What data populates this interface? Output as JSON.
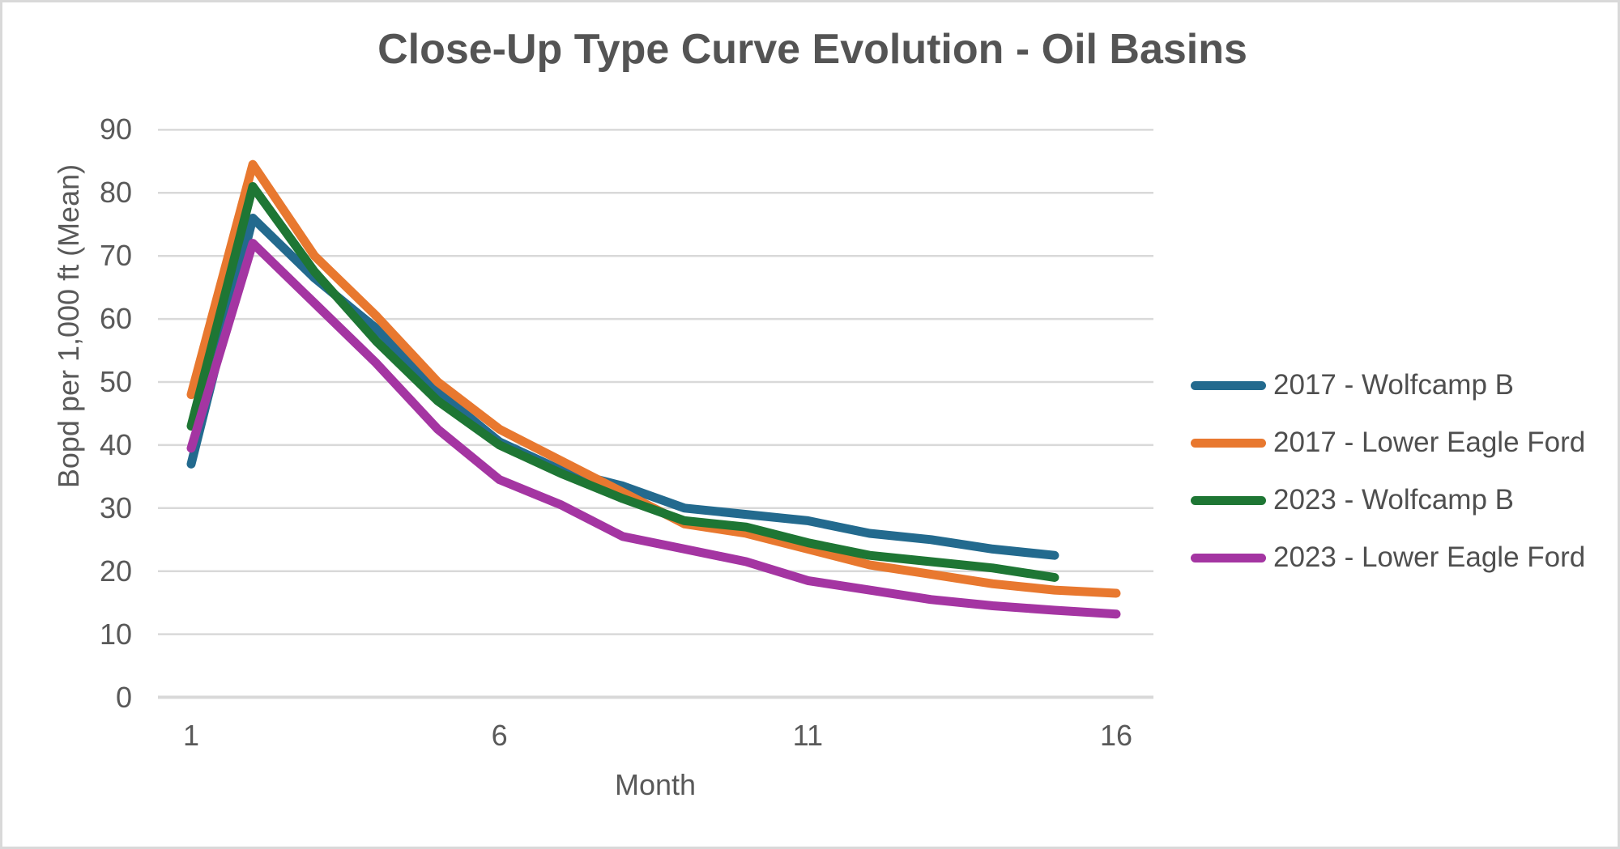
{
  "window": {
    "background": "#ffffff",
    "border_color": "#d9d9d9",
    "text_color": "#595959",
    "gridline_color": "#d9d9d9"
  },
  "chart_data": {
    "type": "line",
    "title": "Close-Up Type Curve Evolution - Oil Basins",
    "xlabel": "Month",
    "ylabel": "Bopd per 1,000 ft (Mean)",
    "xlim": [
      1,
      16
    ],
    "ylim": [
      0,
      90
    ],
    "x_ticks": [
      1,
      6,
      11,
      16
    ],
    "y_ticks": [
      0,
      10,
      20,
      30,
      40,
      50,
      60,
      70,
      80,
      90
    ],
    "grid": "horizontal",
    "legend_position": "right",
    "x": [
      1,
      2,
      3,
      4,
      5,
      6,
      7,
      8,
      9,
      10,
      11,
      12,
      13,
      14,
      15,
      16
    ],
    "series": [
      {
        "name": "2017 - Wolfcamp B",
        "color": "#236A8E",
        "values": [
          37,
          76,
          66.5,
          58.5,
          48.5,
          40.5,
          36,
          33.5,
          30,
          29,
          28,
          26,
          25,
          23.5,
          22.5
        ]
      },
      {
        "name": "2017 - Lower Eagle Ford",
        "color": "#E8782F",
        "values": [
          48,
          84.5,
          70,
          60.5,
          50,
          42.5,
          37.5,
          32.5,
          27.5,
          26,
          23.5,
          21,
          19.5,
          18,
          17,
          16.5
        ]
      },
      {
        "name": "2023 - Wolfcamp B",
        "color": "#1E7634",
        "values": [
          43,
          81,
          67.5,
          56.5,
          47,
          40,
          35.5,
          31.5,
          28,
          27,
          24.5,
          22.5,
          21.5,
          20.5,
          19
        ]
      },
      {
        "name": "2023 - Lower Eagle Ford",
        "color": "#A435A2",
        "values": [
          39.5,
          72,
          62.5,
          53,
          42.5,
          34.5,
          30.5,
          25.5,
          23.5,
          21.5,
          18.5,
          17,
          15.5,
          14.5,
          13.8,
          13.2
        ]
      }
    ]
  }
}
